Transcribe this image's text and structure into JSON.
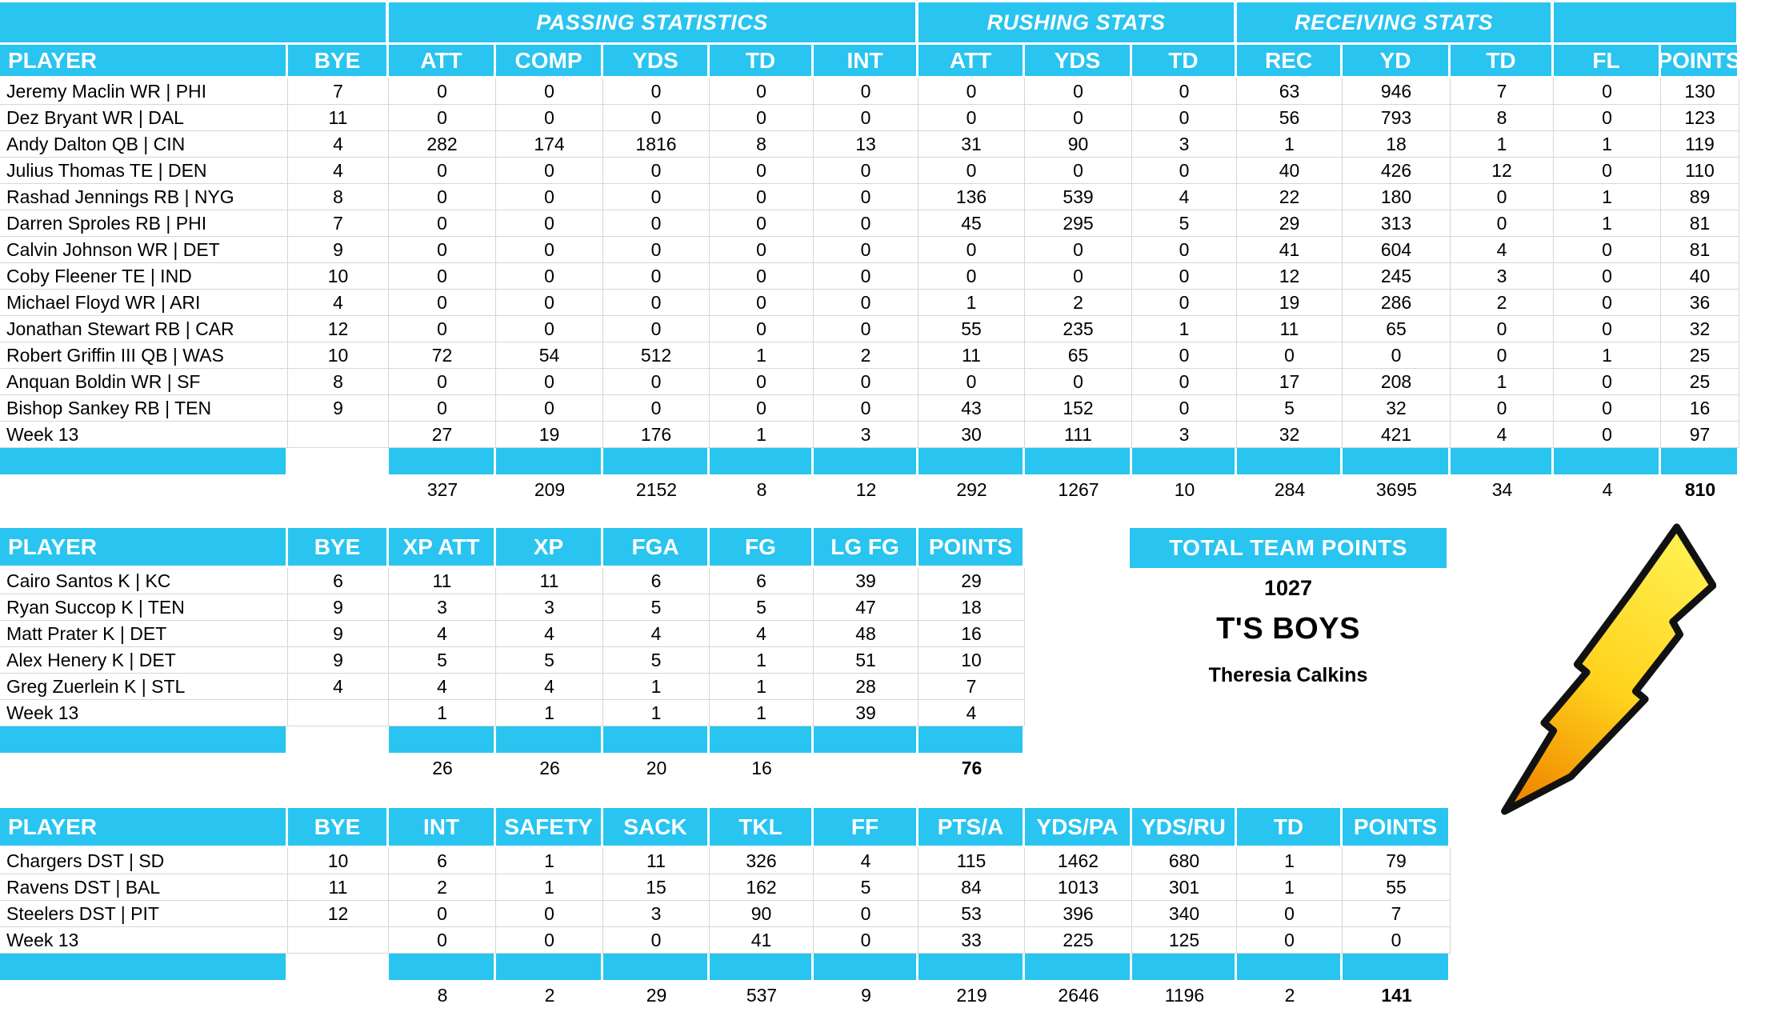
{
  "colors": {
    "header_bg": "#29C4F0",
    "header_text": "#FFFFFF",
    "gridline": "#D6D6D6",
    "body_text": "#000000",
    "bolt_yellow_top": "#FFEF4E",
    "bolt_yellow_mid": "#FFD21C",
    "bolt_orange_bottom": "#F08A00",
    "bolt_outline": "#111111"
  },
  "team_summary": {
    "title": "TOTAL TEAM POINTS",
    "points": "1027",
    "team_name": "T'S BOYS",
    "owner": "Theresia Calkins"
  },
  "tables": [
    {
      "id": "offense",
      "group_headers": [
        {
          "label": "",
          "span": 2
        },
        {
          "label": "PASSING STATISTICS",
          "span": 5
        },
        {
          "label": "RUSHING STATS",
          "span": 3
        },
        {
          "label": "RECEIVING STATS",
          "span": 3
        },
        {
          "label": "",
          "span": 2
        }
      ],
      "columns": [
        "PLAYER",
        "BYE",
        "ATT",
        "COMP",
        "YDS",
        "TD",
        "INT",
        "ATT",
        "YDS",
        "TD",
        "REC",
        "YD",
        "TD",
        "FL",
        "POINTS"
      ],
      "rows": [
        {
          "player": "Jeremy Maclin WR | PHI",
          "values": [
            "7",
            "0",
            "0",
            "0",
            "0",
            "0",
            "0",
            "0",
            "0",
            "63",
            "946",
            "7",
            "0",
            "130"
          ]
        },
        {
          "player": "Dez Bryant WR | DAL",
          "values": [
            "11",
            "0",
            "0",
            "0",
            "0",
            "0",
            "0",
            "0",
            "0",
            "56",
            "793",
            "8",
            "0",
            "123"
          ]
        },
        {
          "player": "Andy Dalton QB | CIN",
          "values": [
            "4",
            "282",
            "174",
            "1816",
            "8",
            "13",
            "31",
            "90",
            "3",
            "1",
            "18",
            "1",
            "1",
            "119"
          ]
        },
        {
          "player": "Julius Thomas TE | DEN",
          "values": [
            "4",
            "0",
            "0",
            "0",
            "0",
            "0",
            "0",
            "0",
            "0",
            "40",
            "426",
            "12",
            "0",
            "110"
          ]
        },
        {
          "player": "Rashad Jennings RB | NYG",
          "values": [
            "8",
            "0",
            "0",
            "0",
            "0",
            "0",
            "136",
            "539",
            "4",
            "22",
            "180",
            "0",
            "1",
            "89"
          ]
        },
        {
          "player": "Darren Sproles RB | PHI",
          "values": [
            "7",
            "0",
            "0",
            "0",
            "0",
            "0",
            "45",
            "295",
            "5",
            "29",
            "313",
            "0",
            "1",
            "81"
          ]
        },
        {
          "player": "Calvin Johnson WR | DET",
          "values": [
            "9",
            "0",
            "0",
            "0",
            "0",
            "0",
            "0",
            "0",
            "0",
            "41",
            "604",
            "4",
            "0",
            "81"
          ]
        },
        {
          "player": "Coby Fleener TE | IND",
          "values": [
            "10",
            "0",
            "0",
            "0",
            "0",
            "0",
            "0",
            "0",
            "0",
            "12",
            "245",
            "3",
            "0",
            "40"
          ]
        },
        {
          "player": "Michael Floyd WR | ARI",
          "values": [
            "4",
            "0",
            "0",
            "0",
            "0",
            "0",
            "1",
            "2",
            "0",
            "19",
            "286",
            "2",
            "0",
            "36"
          ]
        },
        {
          "player": "Jonathan Stewart RB | CAR",
          "values": [
            "12",
            "0",
            "0",
            "0",
            "0",
            "0",
            "55",
            "235",
            "1",
            "11",
            "65",
            "0",
            "0",
            "32"
          ]
        },
        {
          "player": "Robert Griffin III QB | WAS",
          "values": [
            "10",
            "72",
            "54",
            "512",
            "1",
            "2",
            "11",
            "65",
            "0",
            "0",
            "0",
            "0",
            "1",
            "25"
          ]
        },
        {
          "player": "Anquan Boldin WR | SF",
          "values": [
            "8",
            "0",
            "0",
            "0",
            "0",
            "0",
            "0",
            "0",
            "0",
            "17",
            "208",
            "1",
            "0",
            "25"
          ]
        },
        {
          "player": "Bishop Sankey RB | TEN",
          "values": [
            "9",
            "0",
            "0",
            "0",
            "0",
            "0",
            "43",
            "152",
            "0",
            "5",
            "32",
            "0",
            "0",
            "16"
          ]
        },
        {
          "player": "Week 13",
          "values": [
            "",
            "27",
            "19",
            "176",
            "1",
            "3",
            "30",
            "111",
            "3",
            "32",
            "421",
            "4",
            "0",
            "97"
          ]
        }
      ],
      "totals": [
        "",
        "",
        "327",
        "209",
        "2152",
        "8",
        "12",
        "292",
        "1267",
        "10",
        "284",
        "3695",
        "34",
        "4",
        "810"
      ]
    },
    {
      "id": "kickers",
      "columns": [
        "PLAYER",
        "BYE",
        "XP ATT",
        "XP",
        "FGA",
        "FG",
        "LG FG",
        "POINTS"
      ],
      "rows": [
        {
          "player": "Cairo Santos K | KC",
          "values": [
            "6",
            "11",
            "11",
            "6",
            "6",
            "39",
            "29"
          ]
        },
        {
          "player": "Ryan Succop K | TEN",
          "values": [
            "9",
            "3",
            "3",
            "5",
            "5",
            "47",
            "18"
          ]
        },
        {
          "player": "Matt Prater K | DET",
          "values": [
            "9",
            "4",
            "4",
            "4",
            "4",
            "48",
            "16"
          ]
        },
        {
          "player": "Alex Henery K | DET",
          "values": [
            "9",
            "5",
            "5",
            "5",
            "1",
            "51",
            "10"
          ]
        },
        {
          "player": "Greg Zuerlein K | STL",
          "values": [
            "4",
            "4",
            "4",
            "1",
            "1",
            "28",
            "7"
          ]
        },
        {
          "player": "Week 13",
          "values": [
            "",
            "1",
            "1",
            "1",
            "1",
            "39",
            "4"
          ]
        }
      ],
      "totals": [
        "",
        "",
        "26",
        "26",
        "20",
        "16",
        "",
        "76"
      ]
    },
    {
      "id": "defense",
      "columns": [
        "PLAYER",
        "BYE",
        "INT",
        "SAFETY",
        "SACK",
        "TKL",
        "FF",
        "PTS/A",
        "YDS/PA",
        "YDS/RU",
        "TD",
        "POINTS"
      ],
      "rows": [
        {
          "player": "Chargers DST | SD",
          "values": [
            "10",
            "6",
            "1",
            "11",
            "326",
            "4",
            "115",
            "1462",
            "680",
            "1",
            "79"
          ]
        },
        {
          "player": "Ravens DST | BAL",
          "values": [
            "11",
            "2",
            "1",
            "15",
            "162",
            "5",
            "84",
            "1013",
            "301",
            "1",
            "55"
          ]
        },
        {
          "player": "Steelers DST | PIT",
          "values": [
            "12",
            "0",
            "0",
            "3",
            "90",
            "0",
            "53",
            "396",
            "340",
            "0",
            "7"
          ]
        },
        {
          "player": "Week 13",
          "values": [
            "",
            "0",
            "0",
            "0",
            "41",
            "0",
            "33",
            "225",
            "125",
            "0",
            "0"
          ]
        }
      ],
      "totals": [
        "",
        "",
        "8",
        "2",
        "29",
        "537",
        "9",
        "219",
        "2646",
        "1196",
        "2",
        "141"
      ]
    }
  ]
}
